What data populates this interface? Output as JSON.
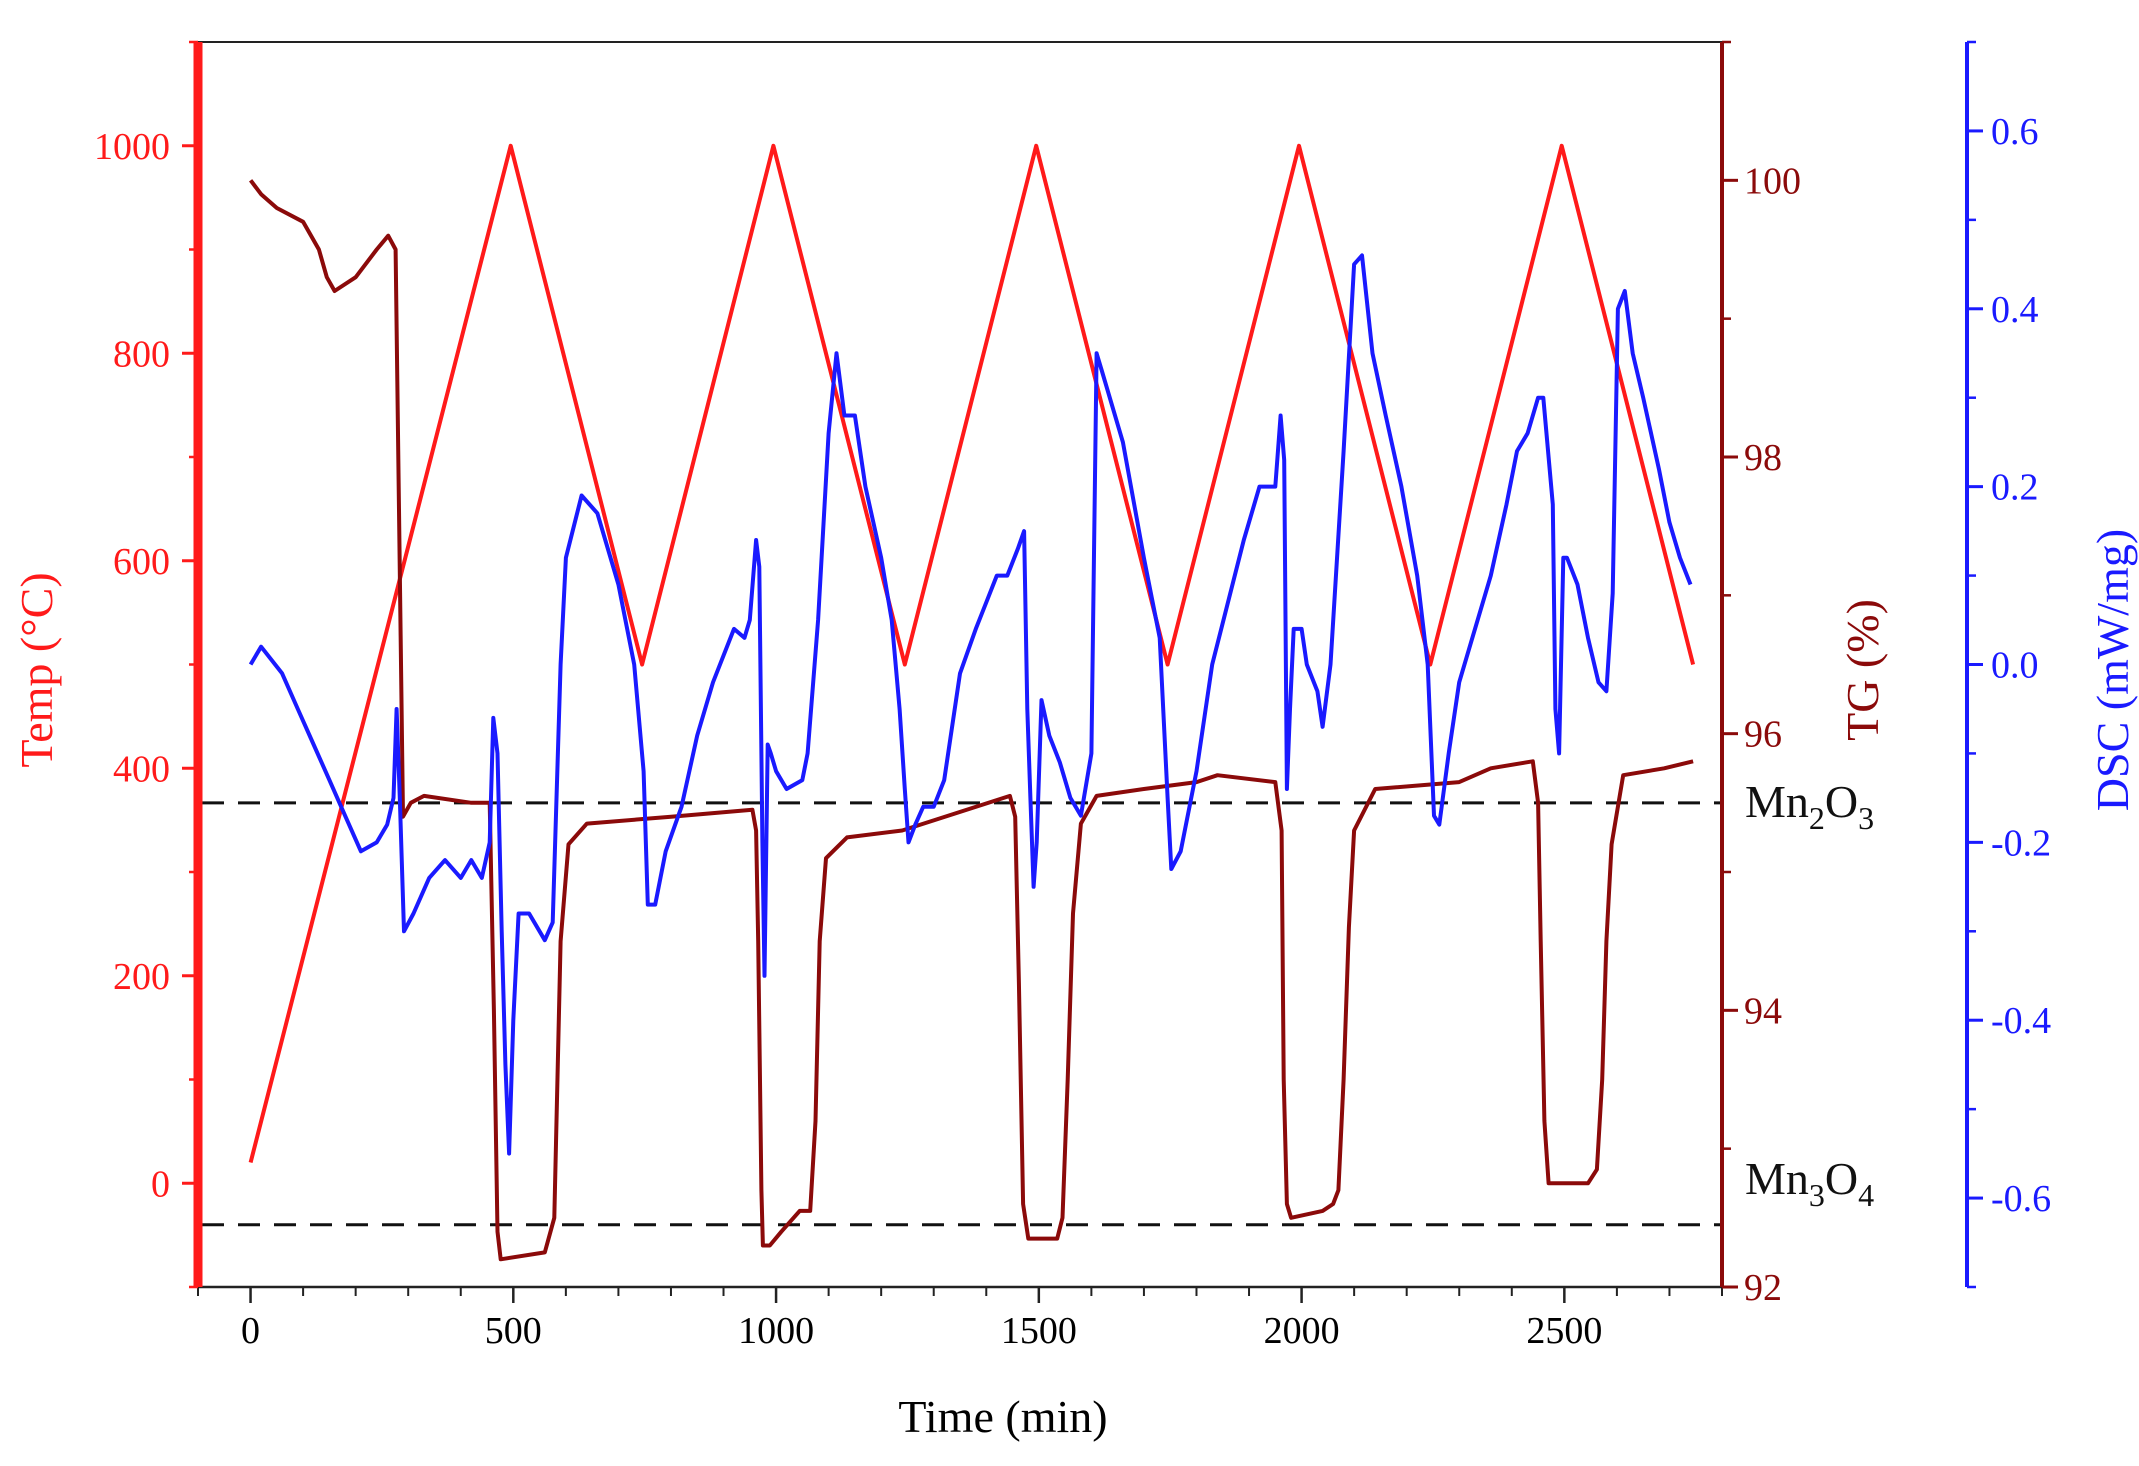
{
  "colors": {
    "temp": "#ff1a1a",
    "tg": "#8b0a0a",
    "dsc": "#1a1aff",
    "axis": "#222222",
    "ref_line": "#111111"
  },
  "chart_data": {
    "type": "line",
    "xlabel": "Time (min)",
    "xlim": [
      -100,
      2800
    ],
    "x_ticks": [
      0,
      500,
      1000,
      1500,
      2000,
      2500
    ],
    "axes": {
      "temp": {
        "label": "Temp (°C)",
        "lim": [
          -100,
          1100
        ],
        "ticks": [
          0,
          200,
          400,
          600,
          800,
          1000
        ],
        "side": "left"
      },
      "tg": {
        "label": "TG (%)",
        "lim": [
          92,
          101
        ],
        "ticks": [
          92,
          94,
          96,
          98,
          100
        ],
        "side": "right"
      },
      "dsc": {
        "label": "DSC (mW/mg)",
        "lim": [
          -0.7,
          0.7
        ],
        "ticks": [
          "-0.6",
          "-0.4",
          "-0.2",
          "0.0",
          "0.2",
          "0.4",
          "0.6"
        ],
        "side": "right-outer"
      }
    },
    "series": [
      {
        "name": "Temp",
        "axis": "temp",
        "points": [
          [
            0,
            20
          ],
          [
            495,
            1000
          ],
          [
            745,
            500
          ],
          [
            995,
            1000
          ],
          [
            1245,
            500
          ],
          [
            1495,
            1000
          ],
          [
            1745,
            500
          ],
          [
            1995,
            1000
          ],
          [
            2245,
            500
          ],
          [
            2495,
            1000
          ],
          [
            2745,
            500
          ]
        ]
      },
      {
        "name": "TG",
        "axis": "tg",
        "points": [
          [
            0,
            100.0
          ],
          [
            20,
            99.9
          ],
          [
            50,
            99.8
          ],
          [
            100,
            99.7
          ],
          [
            130,
            99.5
          ],
          [
            145,
            99.3
          ],
          [
            160,
            99.2
          ],
          [
            200,
            99.3
          ],
          [
            240,
            99.5
          ],
          [
            262,
            99.6
          ],
          [
            276,
            99.5
          ],
          [
            290,
            95.4
          ],
          [
            305,
            95.5
          ],
          [
            330,
            95.55
          ],
          [
            420,
            95.5
          ],
          [
            455,
            95.5
          ],
          [
            463,
            94.0
          ],
          [
            470,
            92.4
          ],
          [
            476,
            92.2
          ],
          [
            560,
            92.25
          ],
          [
            578,
            92.5
          ],
          [
            590,
            94.5
          ],
          [
            605,
            95.2
          ],
          [
            640,
            95.35
          ],
          [
            800,
            95.4
          ],
          [
            955,
            95.45
          ],
          [
            962,
            95.3
          ],
          [
            966,
            94.5
          ],
          [
            972,
            92.7
          ],
          [
            975,
            92.3
          ],
          [
            988,
            92.3
          ],
          [
            1010,
            92.4
          ],
          [
            1045,
            92.55
          ],
          [
            1065,
            92.55
          ],
          [
            1075,
            93.2
          ],
          [
            1083,
            94.5
          ],
          [
            1095,
            95.1
          ],
          [
            1135,
            95.25
          ],
          [
            1240,
            95.3
          ],
          [
            1445,
            95.55
          ],
          [
            1455,
            95.4
          ],
          [
            1462,
            94.2
          ],
          [
            1470,
            92.6
          ],
          [
            1480,
            92.35
          ],
          [
            1535,
            92.35
          ],
          [
            1545,
            92.5
          ],
          [
            1555,
            93.5
          ],
          [
            1565,
            94.7
          ],
          [
            1580,
            95.35
          ],
          [
            1610,
            95.55
          ],
          [
            1700,
            95.6
          ],
          [
            1800,
            95.65
          ],
          [
            1840,
            95.7
          ],
          [
            1950,
            95.65
          ],
          [
            1962,
            95.3
          ],
          [
            1966,
            93.5
          ],
          [
            1972,
            92.6
          ],
          [
            1980,
            92.5
          ],
          [
            2040,
            92.55
          ],
          [
            2060,
            92.6
          ],
          [
            2070,
            92.7
          ],
          [
            2080,
            93.5
          ],
          [
            2090,
            94.6
          ],
          [
            2100,
            95.3
          ],
          [
            2140,
            95.6
          ],
          [
            2300,
            95.65
          ],
          [
            2360,
            95.75
          ],
          [
            2440,
            95.8
          ],
          [
            2450,
            95.5
          ],
          [
            2455,
            94.5
          ],
          [
            2462,
            93.2
          ],
          [
            2470,
            92.75
          ],
          [
            2545,
            92.75
          ],
          [
            2562,
            92.85
          ],
          [
            2572,
            93.5
          ],
          [
            2580,
            94.5
          ],
          [
            2590,
            95.2
          ],
          [
            2612,
            95.7
          ],
          [
            2690,
            95.75
          ],
          [
            2745,
            95.8
          ]
        ]
      },
      {
        "name": "DSC",
        "axis": "dsc",
        "points": [
          [
            0,
            0.0
          ],
          [
            20,
            0.02
          ],
          [
            60,
            -0.01
          ],
          [
            90,
            -0.05
          ],
          [
            120,
            -0.09
          ],
          [
            150,
            -0.13
          ],
          [
            180,
            -0.17
          ],
          [
            210,
            -0.21
          ],
          [
            240,
            -0.2
          ],
          [
            260,
            -0.18
          ],
          [
            272,
            -0.15
          ],
          [
            278,
            -0.05
          ],
          [
            284,
            -0.15
          ],
          [
            292,
            -0.3
          ],
          [
            310,
            -0.28
          ],
          [
            340,
            -0.24
          ],
          [
            370,
            -0.22
          ],
          [
            400,
            -0.24
          ],
          [
            420,
            -0.22
          ],
          [
            440,
            -0.24
          ],
          [
            455,
            -0.2
          ],
          [
            462,
            -0.06
          ],
          [
            470,
            -0.1
          ],
          [
            478,
            -0.3
          ],
          [
            485,
            -0.45
          ],
          [
            492,
            -0.55
          ],
          [
            500,
            -0.4
          ],
          [
            510,
            -0.28
          ],
          [
            530,
            -0.28
          ],
          [
            560,
            -0.31
          ],
          [
            575,
            -0.29
          ],
          [
            590,
            0.0
          ],
          [
            600,
            0.12
          ],
          [
            630,
            0.19
          ],
          [
            660,
            0.17
          ],
          [
            700,
            0.09
          ],
          [
            730,
            0.0
          ],
          [
            748,
            -0.12
          ],
          [
            756,
            -0.27
          ],
          [
            770,
            -0.27
          ],
          [
            790,
            -0.21
          ],
          [
            820,
            -0.16
          ],
          [
            850,
            -0.08
          ],
          [
            880,
            -0.02
          ],
          [
            920,
            0.04
          ],
          [
            940,
            0.03
          ],
          [
            950,
            0.05
          ],
          [
            962,
            0.14
          ],
          [
            968,
            0.11
          ],
          [
            974,
            -0.2
          ],
          [
            978,
            -0.35
          ],
          [
            984,
            -0.09
          ],
          [
            990,
            -0.1
          ],
          [
            1000,
            -0.12
          ],
          [
            1020,
            -0.14
          ],
          [
            1050,
            -0.13
          ],
          [
            1060,
            -0.1
          ],
          [
            1080,
            0.05
          ],
          [
            1100,
            0.26
          ],
          [
            1115,
            0.35
          ],
          [
            1130,
            0.28
          ],
          [
            1150,
            0.28
          ],
          [
            1170,
            0.2
          ],
          [
            1200,
            0.12
          ],
          [
            1220,
            0.05
          ],
          [
            1235,
            -0.05
          ],
          [
            1245,
            -0.14
          ],
          [
            1252,
            -0.2
          ],
          [
            1265,
            -0.18
          ],
          [
            1280,
            -0.16
          ],
          [
            1300,
            -0.16
          ],
          [
            1320,
            -0.13
          ],
          [
            1350,
            -0.01
          ],
          [
            1380,
            0.04
          ],
          [
            1400,
            0.07
          ],
          [
            1420,
            0.1
          ],
          [
            1440,
            0.1
          ],
          [
            1460,
            0.13
          ],
          [
            1472,
            0.15
          ],
          [
            1478,
            -0.05
          ],
          [
            1484,
            -0.15
          ],
          [
            1490,
            -0.25
          ],
          [
            1496,
            -0.2
          ],
          [
            1505,
            -0.04
          ],
          [
            1520,
            -0.08
          ],
          [
            1540,
            -0.11
          ],
          [
            1560,
            -0.15
          ],
          [
            1580,
            -0.17
          ],
          [
            1600,
            -0.1
          ],
          [
            1610,
            0.35
          ],
          [
            1620,
            0.33
          ],
          [
            1660,
            0.25
          ],
          [
            1700,
            0.12
          ],
          [
            1730,
            0.03
          ],
          [
            1745,
            -0.15
          ],
          [
            1752,
            -0.23
          ],
          [
            1770,
            -0.21
          ],
          [
            1800,
            -0.12
          ],
          [
            1830,
            0.0
          ],
          [
            1860,
            0.07
          ],
          [
            1890,
            0.14
          ],
          [
            1920,
            0.2
          ],
          [
            1950,
            0.2
          ],
          [
            1960,
            0.28
          ],
          [
            1967,
            0.23
          ],
          [
            1972,
            -0.14
          ],
          [
            1978,
            -0.05
          ],
          [
            1985,
            0.04
          ],
          [
            2000,
            0.04
          ],
          [
            2010,
            0.0
          ],
          [
            2030,
            -0.03
          ],
          [
            2040,
            -0.07
          ],
          [
            2055,
            0.0
          ],
          [
            2080,
            0.24
          ],
          [
            2100,
            0.45
          ],
          [
            2115,
            0.46
          ],
          [
            2135,
            0.35
          ],
          [
            2160,
            0.28
          ],
          [
            2190,
            0.2
          ],
          [
            2220,
            0.1
          ],
          [
            2240,
            0.0
          ],
          [
            2252,
            -0.17
          ],
          [
            2262,
            -0.18
          ],
          [
            2280,
            -0.1
          ],
          [
            2300,
            -0.02
          ],
          [
            2330,
            0.04
          ],
          [
            2360,
            0.1
          ],
          [
            2390,
            0.18
          ],
          [
            2410,
            0.24
          ],
          [
            2430,
            0.26
          ],
          [
            2450,
            0.3
          ],
          [
            2460,
            0.3
          ],
          [
            2478,
            0.18
          ],
          [
            2483,
            -0.05
          ],
          [
            2490,
            -0.1
          ],
          [
            2498,
            0.12
          ],
          [
            2505,
            0.12
          ],
          [
            2525,
            0.09
          ],
          [
            2545,
            0.03
          ],
          [
            2565,
            -0.02
          ],
          [
            2580,
            -0.03
          ],
          [
            2592,
            0.08
          ],
          [
            2602,
            0.4
          ],
          [
            2615,
            0.42
          ],
          [
            2630,
            0.35
          ],
          [
            2650,
            0.3
          ],
          [
            2680,
            0.22
          ],
          [
            2700,
            0.16
          ],
          [
            2720,
            0.12
          ],
          [
            2740,
            0.09
          ]
        ]
      }
    ],
    "reference_lines": [
      {
        "axis": "tg",
        "y": 95.5,
        "label": "Mn2O3"
      },
      {
        "axis": "tg",
        "y": 92.45,
        "label": "Mn3O4"
      }
    ]
  }
}
